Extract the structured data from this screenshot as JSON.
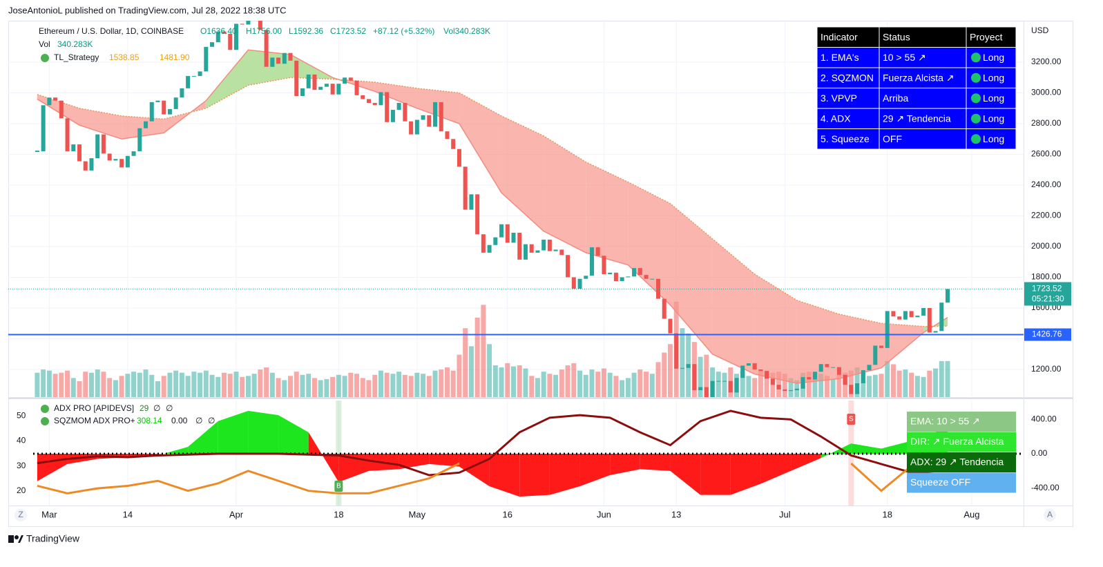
{
  "header": {
    "publisher": "JoseAntonioL published on TradingView.com, Jul 28, 2022 18:38 UTC"
  },
  "footer": {
    "brand": "TradingView"
  },
  "axis_buttons": [
    "Z",
    "A"
  ],
  "table": {
    "header": [
      "Indicator",
      "Status",
      "Proyect"
    ],
    "rows": [
      [
        "1. EMA's",
        "10 > 55 ↗",
        "Long"
      ],
      [
        "2. SQZMON",
        "Fuerza Alcista ↗",
        "Long"
      ],
      [
        "3. VPVP",
        "Arriba",
        "Long"
      ],
      [
        "4. ADX",
        "29 ↗ Tendencia",
        "Long"
      ],
      [
        "5. Squeeze",
        "OFF",
        "Long"
      ]
    ]
  },
  "signal_boxes": [
    {
      "text": "EMA: 10 > 55 ↗",
      "color": "#8cc785"
    },
    {
      "text": "DIR: ↗ Fuerza Alcista",
      "color": "#2ee62e"
    },
    {
      "text": "ADX: 29 ↗ Tendencia",
      "color": "#0b6b0b"
    },
    {
      "text": "Squeeze OFF",
      "color": "#5fb1f0"
    }
  ],
  "chart_data": [
    {
      "type": "candlestick",
      "title": "Ethereum / U.S. Dollar, 1D, COINBASE",
      "ohlc": [
        "O1636.40",
        "H1756.00",
        "L1592.36",
        "C1723.52",
        "+87.12 (+5.32%)",
        "Vol340.283K"
      ],
      "y_unit": "USD",
      "up_color": "#26a69a",
      "down_color": "#ef5350",
      "x": [
        -1,
        0,
        1,
        2,
        3,
        4,
        5,
        6,
        7,
        8,
        9,
        10,
        11,
        12,
        13,
        14,
        15,
        16,
        17,
        18,
        19,
        20,
        21,
        22,
        23,
        24,
        25,
        26,
        27,
        28,
        29,
        30,
        31,
        32,
        33,
        34,
        35,
        36,
        37,
        38,
        39,
        40,
        41,
        42,
        43,
        44,
        45,
        46,
        47,
        48,
        49,
        50,
        51,
        52,
        53,
        54,
        55,
        56,
        57,
        58,
        59,
        60,
        61,
        62,
        63,
        64,
        65,
        66,
        67,
        68,
        69,
        70,
        71,
        72,
        73,
        74,
        75,
        76,
        77,
        78,
        79,
        80,
        81,
        82,
        83,
        84,
        85,
        86,
        87,
        88,
        89,
        90,
        91,
        92,
        93,
        94,
        95,
        96,
        97,
        98,
        99,
        100,
        101,
        102,
        103,
        104,
        105,
        106,
        107,
        108,
        109,
        110,
        111,
        112,
        113,
        114,
        115,
        116,
        117,
        118,
        119,
        120,
        121,
        122,
        123,
        124,
        125,
        126,
        127,
        128,
        129,
        130,
        131,
        132,
        133,
        134,
        135,
        136,
        137,
        138,
        139,
        140,
        141,
        142,
        143,
        144,
        145,
        146,
        147,
        148,
        149,
        150
      ],
      "close": [
        2620,
        2920,
        2970,
        2950,
        2835,
        2620,
        2665,
        2555,
        2495,
        2575,
        2730,
        2605,
        2560,
        2570,
        2515,
        2590,
        2620,
        2770,
        2815,
        2940,
        2950,
        2860,
        2895,
        2970,
        3030,
        3110,
        3110,
        3140,
        3300,
        3330,
        3400,
        3385,
        3280,
        3450,
        3445,
        3520,
        3520,
        3410,
        3170,
        3230,
        3190,
        3260,
        3210,
        2980,
        3030,
        3120,
        3020,
        3040,
        3060,
        2990,
        3060,
        3100,
        3080,
        2985,
        2960,
        2935,
        2920,
        3005,
        2810,
        2890,
        2935,
        2815,
        2730,
        2825,
        2855,
        2780,
        2940,
        2750,
        2700,
        2635,
        2520,
        2240,
        2340,
        2080,
        1960,
        2010,
        2060,
        2145,
        2025,
        2090,
        1915,
        2015,
        1960,
        1975,
        2045,
        1970,
        1980,
        1945,
        1800,
        1725,
        1790,
        1810,
        1995,
        1940,
        1820,
        1830,
        1775,
        1800,
        1805,
        1860,
        1815,
        1790,
        1790,
        1660,
        1530,
        1435,
        1205,
        1210,
        1235,
        1065,
        1085,
        995,
        1125,
        1125,
        1125,
        1050,
        1145,
        1225,
        1240,
        1200,
        1190,
        1140,
        1100,
        1070,
        1060,
        1065,
        1075,
        1150,
        1135,
        1185,
        1235,
        1215,
        1215,
        1165,
        1100,
        1040,
        1110,
        1195,
        1230,
        1355,
        1340,
        1580,
        1545,
        1525,
        1580,
        1540,
        1550,
        1600,
        1440,
        1450,
        1635,
        1723.52
      ],
      "volume_title": "Vol",
      "volume_label": "340.283K",
      "volume_ylim": [
        0,
        3550
      ],
      "volume": [
        230,
        260,
        250,
        220,
        230,
        250,
        180,
        150,
        240,
        230,
        260,
        240,
        180,
        160,
        200,
        220,
        240,
        230,
        260,
        210,
        150,
        200,
        230,
        250,
        230,
        200,
        240,
        230,
        250,
        210,
        190,
        230,
        220,
        240,
        190,
        200,
        220,
        260,
        280,
        230,
        180,
        160,
        200,
        240,
        210,
        220,
        180,
        160,
        170,
        190,
        210,
        200,
        230,
        220,
        180,
        160,
        210,
        250,
        230,
        220,
        240,
        210,
        200,
        230,
        220,
        200,
        250,
        260,
        280,
        250,
        400,
        650,
        480,
        750,
        870,
        500,
        300,
        280,
        320,
        290,
        300,
        270,
        200,
        180,
        240,
        220,
        210,
        260,
        300,
        320,
        250,
        210,
        260,
        240,
        270,
        230,
        200,
        160,
        180,
        230,
        260,
        240,
        220,
        330,
        420,
        500,
        900,
        650,
        600,
        520,
        380,
        400,
        280,
        240,
        230,
        280,
        220,
        250,
        200,
        180,
        260,
        250,
        230,
        240,
        220,
        180,
        160,
        230,
        240,
        230,
        220,
        200,
        170,
        210,
        230,
        250,
        280,
        230,
        200,
        210,
        220,
        340,
        310,
        250,
        260,
        230,
        200,
        190,
        250,
        270,
        340,
        340.283
      ],
      "ema_name": "TL_Strategy",
      "ema_legend": [
        "1538.85",
        "1481.90"
      ],
      "ema_x": [
        -1,
        6,
        13,
        20,
        27,
        34,
        41,
        48,
        55,
        62,
        69,
        76,
        83,
        90,
        97,
        104,
        111,
        118,
        125,
        132,
        139,
        146,
        150
      ],
      "ema_fast": [
        2960,
        2790,
        2700,
        2740,
        2950,
        3280,
        3250,
        3100,
        3010,
        2900,
        2800,
        2350,
        2100,
        1960,
        1880,
        1620,
        1300,
        1170,
        1110,
        1140,
        1210,
        1440,
        1538.85
      ],
      "ema_slow": [
        2990,
        2900,
        2850,
        2830,
        2900,
        3050,
        3100,
        3090,
        3070,
        3030,
        3000,
        2850,
        2720,
        2550,
        2420,
        2280,
        2050,
        1820,
        1650,
        1560,
        1500,
        1480,
        1481.9
      ],
      "price_line": 1426.76,
      "countdown": "05:21:30",
      "xlim": [
        -5.8,
        162.6
      ],
      "ylim": [
        1020,
        3470
      ],
      "xticks": [
        {
          "value": 1,
          "label": "Mar"
        },
        {
          "value": 14,
          "label": "14"
        },
        {
          "value": 32,
          "label": "Apr"
        },
        {
          "value": 49,
          "label": "18"
        },
        {
          "value": 62,
          "label": "May"
        },
        {
          "value": 77,
          "label": "16"
        },
        {
          "value": 93,
          "label": "Jun"
        },
        {
          "value": 105,
          "label": "13"
        },
        {
          "value": 123,
          "label": "Jul"
        },
        {
          "value": 140,
          "label": "18"
        },
        {
          "value": 154,
          "label": "Aug"
        }
      ],
      "yticks": [
        {
          "value": 1200,
          "label": "1200.00"
        },
        {
          "value": 1400,
          "label": "1400.00"
        },
        {
          "value": 1600,
          "label": "1600.00"
        },
        {
          "value": 1800,
          "label": "1800.00"
        },
        {
          "value": 2000,
          "label": "2000.00"
        },
        {
          "value": 2200,
          "label": "2200.00"
        },
        {
          "value": 2400,
          "label": "2400.00"
        },
        {
          "value": 2600,
          "label": "2600.00"
        },
        {
          "value": 2800,
          "label": "2800.00"
        },
        {
          "value": 3000,
          "label": "3000.00"
        },
        {
          "value": 3200,
          "label": "3200.00"
        }
      ],
      "grid": true
    },
    {
      "type": "indicator",
      "adx_name": "ADX PRO [APIDEVS]",
      "adx_extra": [
        "∅",
        "∅"
      ],
      "sqz_name": "SQZMOM ADX PRO+",
      "sqz_extra": [
        "0.00",
        "∅",
        "∅"
      ],
      "x": [
        -1,
        4,
        9,
        14,
        19,
        24,
        29,
        34,
        39,
        44,
        49,
        54,
        59,
        64,
        69,
        74,
        79,
        84,
        89,
        94,
        99,
        104,
        109,
        114,
        119,
        124,
        129,
        134,
        139,
        144,
        149,
        150
      ],
      "momentum": [
        -320,
        -120,
        -60,
        -40,
        -20,
        80,
        380,
        500,
        450,
        250,
        -330,
        -200,
        -180,
        -120,
        -150,
        -380,
        -500,
        -480,
        -380,
        -250,
        -180,
        -200,
        -480,
        -480,
        -350,
        -200,
        -50,
        120,
        60,
        150,
        280,
        308.14
      ],
      "dir": [
        -110,
        -60,
        -30,
        -40,
        -20,
        -10,
        0,
        0,
        0,
        -10,
        -20,
        -80,
        -130,
        -250,
        -220,
        -60,
        250,
        420,
        450,
        420,
        250,
        100,
        380,
        500,
        420,
        400,
        200,
        -20,
        -120,
        -220,
        -200,
        -190
      ],
      "adx": [
        22,
        19,
        21,
        22,
        24,
        20,
        23,
        28,
        24,
        20,
        19,
        19,
        22,
        25,
        31,
        null,
        null,
        null,
        null,
        null,
        null,
        null,
        null,
        null,
        null,
        null,
        null,
        31,
        20,
        30,
        30,
        29
      ],
      "markers": [
        {
          "label": "B",
          "x": 49,
          "color": "#4caf50"
        },
        {
          "label": "S",
          "x": 134,
          "color": "#ef5350"
        }
      ],
      "ylim": [
        14.1,
        56.2
      ],
      "yticks": [
        20,
        30,
        40,
        50
      ],
      "y2lim": [
        -604,
        620
      ],
      "y2ticks": [
        {
          "value": 400,
          "label": "400.00"
        },
        {
          "value": 0,
          "label": "0.00"
        },
        {
          "value": -400,
          "label": "-400.00"
        }
      ]
    }
  ]
}
